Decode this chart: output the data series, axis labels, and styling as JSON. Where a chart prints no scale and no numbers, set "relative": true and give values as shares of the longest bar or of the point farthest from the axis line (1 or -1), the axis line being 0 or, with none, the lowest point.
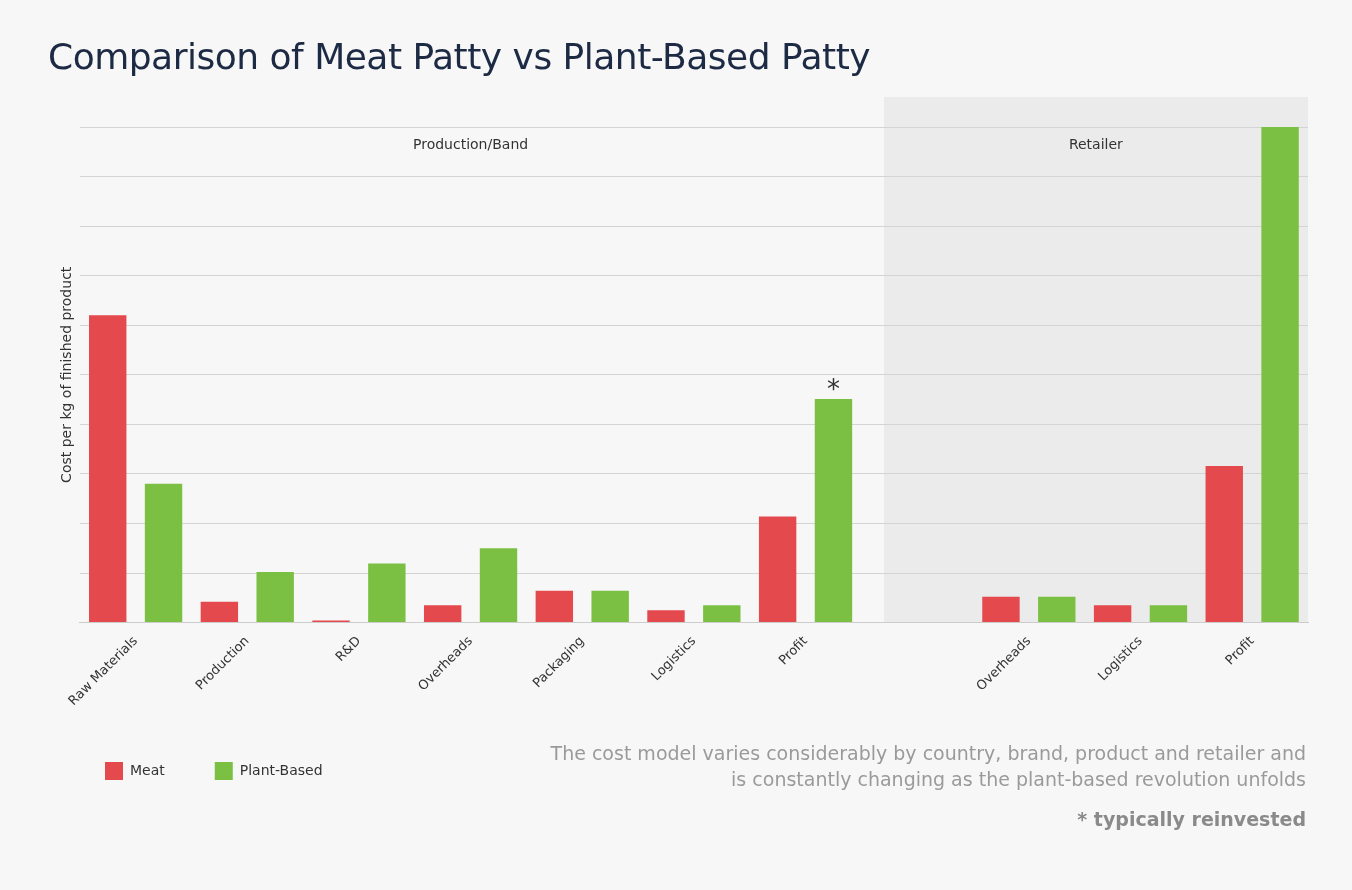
{
  "chart_data": {
    "type": "bar",
    "title": "Comparison of Meat Patty vs Plant-Based Patty",
    "ylabel": "Cost per kg of finished product",
    "relative": true,
    "grid": "y",
    "legend": "bottom left",
    "categories": [
      "Raw Materials",
      "Production",
      "R&D",
      "Overheads",
      "Packaging",
      "Logistics",
      "Profit",
      null,
      "Overheads",
      "Logistics",
      "Profit"
    ],
    "series": [
      {
        "name": "Meat",
        "color": "#e3494d",
        "values": [
          0.62,
          0.042,
          0.004,
          0.035,
          0.064,
          0.025,
          0.214,
          null,
          0.052,
          0.035,
          0.316
        ]
      },
      {
        "name": "Plant-Based",
        "color": "#7bc043",
        "values": [
          0.28,
          0.102,
          0.119,
          0.15,
          0.064,
          0.035,
          0.451,
          null,
          0.052,
          0.035,
          1
        ]
      }
    ],
    "annotations": [
      "Production/Band",
      "Retailer",
      "*",
      "The cost model varies considerably by country, brand, product and retailer and is constantly changing as the plant-based revolution unfolds",
      "* typically reinvested"
    ]
  }
}
